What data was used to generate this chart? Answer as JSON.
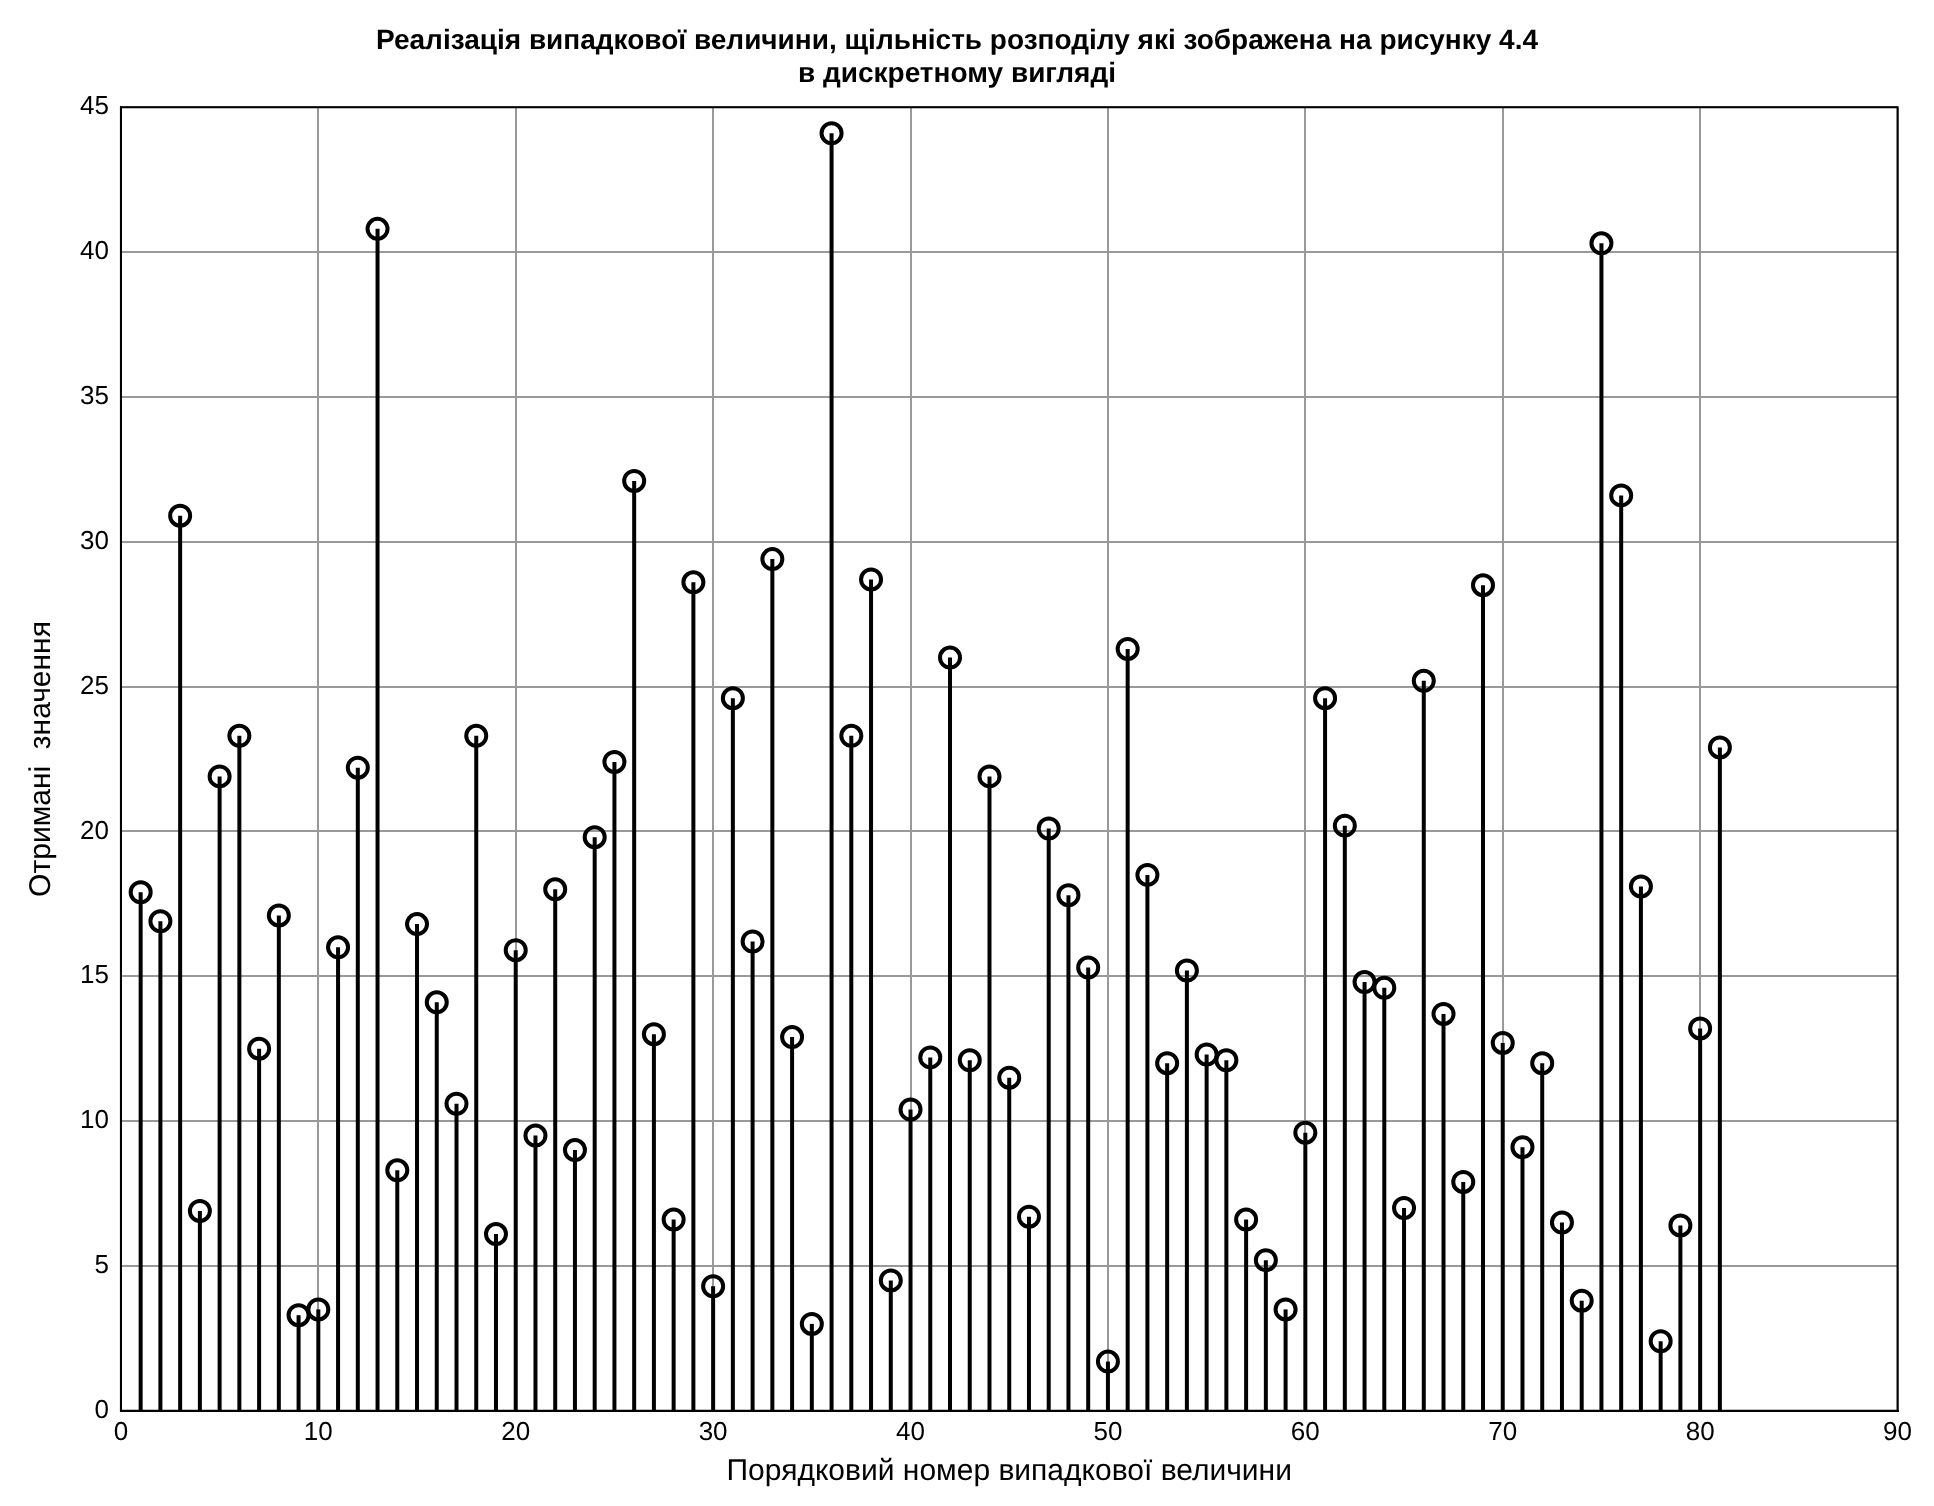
{
  "chart_data": {
    "type": "lollipop",
    "title": "Реалізація випадкової величини, щільність розподілу які зображена на рисунку 4.4\nв дискретному вигляді",
    "xlabel": "Порядковий номер випадкової величини",
    "ylabel": "Отримані  значення",
    "x": [
      1,
      2,
      3,
      4,
      5,
      6,
      7,
      8,
      9,
      10,
      11,
      12,
      13,
      14,
      15,
      16,
      17,
      18,
      19,
      20,
      21,
      22,
      23,
      24,
      25,
      26,
      27,
      28,
      29,
      30,
      31,
      32,
      33,
      34,
      35,
      36,
      37,
      38,
      39,
      40,
      41,
      42,
      43,
      44,
      45,
      46,
      47,
      48,
      49,
      50,
      51,
      52,
      53,
      54,
      55,
      56,
      57,
      58,
      59,
      60,
      61,
      62,
      63,
      64,
      65,
      66,
      67,
      68,
      69,
      70,
      71,
      72,
      73,
      74,
      75,
      76,
      77,
      78,
      79,
      80,
      81
    ],
    "values": [
      17.9,
      16.9,
      30.9,
      6.9,
      21.9,
      23.3,
      12.5,
      17.1,
      3.3,
      3.5,
      16.0,
      22.2,
      40.8,
      8.3,
      16.8,
      14.1,
      10.6,
      23.3,
      6.1,
      15.9,
      9.5,
      18.0,
      9.0,
      19.8,
      22.4,
      32.1,
      13.0,
      6.6,
      28.6,
      4.3,
      24.6,
      16.2,
      29.4,
      12.9,
      3.0,
      44.1,
      23.3,
      28.7,
      4.5,
      10.4,
      12.2,
      26.0,
      12.1,
      21.9,
      11.5,
      6.7,
      20.1,
      17.8,
      15.3,
      1.7,
      26.3,
      18.5,
      12.0,
      15.2,
      12.3,
      12.1,
      6.6,
      5.2,
      3.5,
      9.6,
      24.6,
      20.2,
      14.8,
      14.6,
      7.0,
      25.2,
      13.7,
      7.9,
      28.5,
      12.7,
      9.1,
      12.0,
      6.5,
      3.8,
      40.3,
      31.6,
      18.1,
      2.4,
      6.4,
      13.2,
      22.9
    ],
    "color": "#000000",
    "marker": "circle",
    "xlim": [
      0,
      90
    ],
    "xticks": [
      0,
      10,
      20,
      30,
      40,
      50,
      60,
      70,
      80,
      90
    ],
    "ylim": [
      0,
      45
    ],
    "yticks": [
      0,
      5,
      10,
      15,
      20,
      25,
      30,
      35,
      40,
      45
    ],
    "grid": true,
    "legend": false
  }
}
